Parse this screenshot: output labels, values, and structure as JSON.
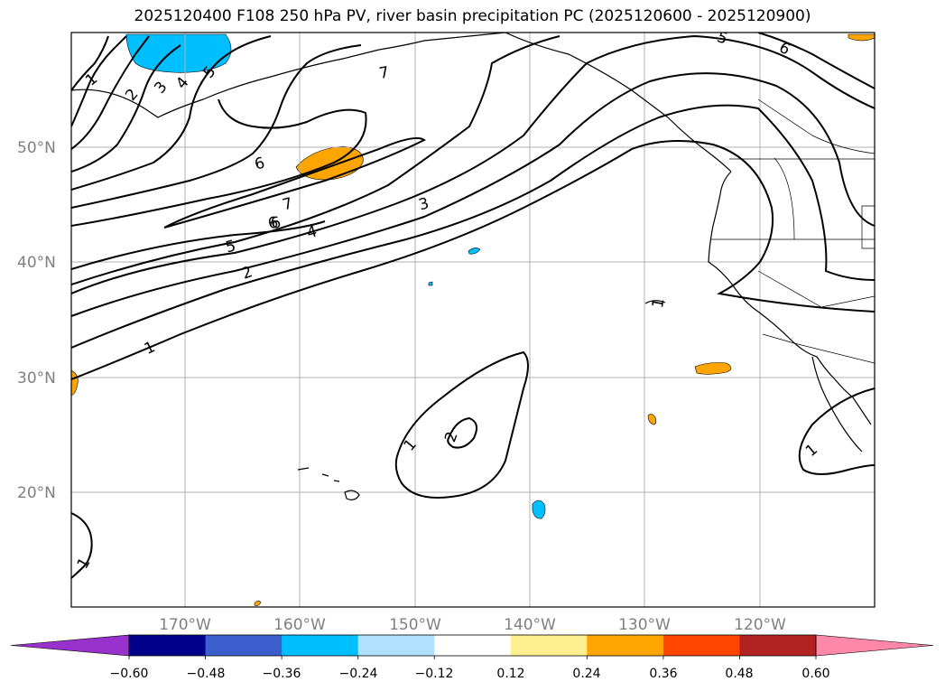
{
  "title": "2025120400 F108 250 hPa PV, river basin precipitation PC (2025120600 - 2025120900)",
  "map": {
    "lon_range": [
      -180,
      -110
    ],
    "lat_range": [
      10,
      60
    ],
    "lat_ticks": [
      {
        "value": 50,
        "label": "50°N"
      },
      {
        "value": 40,
        "label": "40°N"
      },
      {
        "value": 30,
        "label": "30°N"
      },
      {
        "value": 20,
        "label": "20°N"
      }
    ],
    "lon_ticks": [
      {
        "value": -170,
        "label": "170°W"
      },
      {
        "value": -160,
        "label": "160°W"
      },
      {
        "value": -150,
        "label": "150°W"
      },
      {
        "value": -140,
        "label": "140°W"
      },
      {
        "value": -130,
        "label": "130°W"
      },
      {
        "value": -120,
        "label": "120°W"
      }
    ],
    "contour_labels": [
      "1",
      "2",
      "3",
      "4",
      "5",
      "6",
      "7",
      "6",
      "7",
      "6",
      "5",
      "4",
      "3",
      "2",
      "1",
      "1",
      "2",
      "1",
      "1",
      "1",
      "5",
      "6"
    ]
  },
  "colorbar": {
    "colors": [
      "#9932cc",
      "#00008b",
      "#3a5fcd",
      "#00bfff",
      "#b0e2ff",
      "#ffffff",
      "#fff08f",
      "#ffa500",
      "#ff4500",
      "#b22222",
      "#ff88aa"
    ],
    "labels": [
      "−0.60",
      "−0.48",
      "−0.36",
      "−0.24",
      "−0.12",
      "0.12",
      "0.24",
      "0.36",
      "0.48",
      "0.60"
    ]
  }
}
